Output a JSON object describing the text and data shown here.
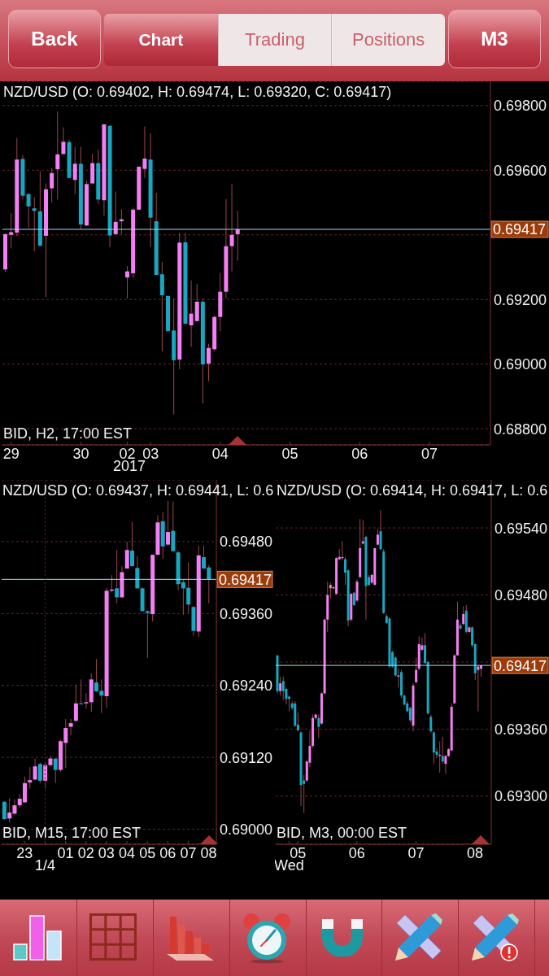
{
  "chart_data": [
    {
      "type": "other",
      "annotations": [
        "Back",
        "Chart",
        "Trading",
        "Positions",
        "M3"
      ]
    },
    {
      "type": "candlestick",
      "title": "NZD/USD (O: 0.69402, H: 0.69474, L: 0.69320, C: 0.69417)",
      "subtitle": "BID, H2, 17:00 EST",
      "categories": [
        null,
        "29",
        null,
        null,
        null,
        null,
        null,
        null,
        null,
        null,
        null,
        null,
        null,
        "30",
        null,
        null,
        null,
        null,
        null,
        null,
        null,
        "02\n2017",
        null,
        null,
        null,
        "03",
        null,
        null,
        null,
        null,
        null,
        null,
        null,
        null,
        null,
        null,
        null,
        "04",
        null,
        null,
        null,
        null,
        null,
        null,
        null,
        null,
        null,
        null,
        null,
        "05",
        null,
        null,
        null,
        null,
        null,
        null,
        null,
        null,
        null,
        null,
        null,
        "06",
        null,
        null,
        null,
        null,
        null,
        null,
        null,
        null,
        null,
        null,
        null,
        "07",
        null,
        null,
        null,
        null,
        null,
        null,
        null,
        null,
        null,
        null
      ],
      "ohlc": [
        [
          0.69293,
          0.69405,
          0.69285,
          0.69402
        ],
        [
          0.694,
          0.69467,
          0.69358,
          0.69408
        ],
        [
          0.69407,
          0.697,
          0.69396,
          0.69633
        ],
        [
          0.69635,
          0.69647,
          0.69511,
          0.69521
        ],
        [
          0.69526,
          0.6953,
          0.69421,
          0.69488
        ],
        [
          0.69482,
          0.69517,
          0.69349,
          0.69474
        ],
        [
          0.69473,
          0.69597,
          0.69366,
          0.69366
        ],
        [
          0.69397,
          0.69559,
          0.69207,
          0.69541
        ],
        [
          0.69544,
          0.69607,
          0.695,
          0.69591
        ],
        [
          0.69603,
          0.69782,
          0.69509,
          0.69649
        ],
        [
          0.6965,
          0.69733,
          0.6965,
          0.69688
        ],
        [
          0.69687,
          0.69695,
          0.69576,
          0.69576
        ],
        [
          0.6957,
          0.69672,
          0.69526,
          0.6962
        ],
        [
          0.6962,
          0.69672,
          0.69417,
          0.69432
        ],
        [
          0.69429,
          0.69568,
          0.69427,
          0.69557
        ],
        [
          0.69559,
          0.69651,
          0.69559,
          0.69622
        ],
        [
          0.69622,
          0.69664,
          0.69496,
          0.69509
        ],
        [
          0.69507,
          0.69742,
          0.69459,
          0.69742
        ],
        [
          0.69737,
          0.6974,
          0.69362,
          0.69398
        ],
        [
          0.69402,
          0.69534,
          0.69402,
          0.6944
        ],
        [
          0.69442,
          0.69479,
          0.69402,
          0.69448
        ],
        [
          0.69268,
          0.69303,
          0.69203,
          0.69287
        ],
        [
          0.69281,
          0.69484,
          0.69266,
          0.69478
        ],
        [
          0.69478,
          0.69611,
          0.69478,
          0.69611
        ],
        [
          0.69604,
          0.69735,
          0.69576,
          0.69636
        ],
        [
          0.69633,
          0.69714,
          0.69362,
          0.69453
        ],
        [
          0.69442,
          0.6953,
          0.69276,
          0.69276
        ],
        [
          0.69278,
          0.69316,
          0.69039,
          0.69213
        ],
        [
          0.69211,
          0.69211,
          0.69102,
          0.69102
        ],
        [
          0.69104,
          0.69203,
          0.68844,
          0.69012
        ],
        [
          0.69014,
          0.69406,
          0.68984,
          0.69376
        ],
        [
          0.69377,
          0.69406,
          0.69125,
          0.69125
        ],
        [
          0.6912,
          0.69259,
          0.69053,
          0.69156
        ],
        [
          0.69133,
          0.69249,
          0.69133,
          0.69193
        ],
        [
          0.69193,
          0.69203,
          0.68878,
          0.68999
        ],
        [
          0.69001,
          0.69063,
          0.68947,
          0.6905
        ],
        [
          0.69046,
          0.69151,
          0.6904,
          0.69146
        ],
        [
          0.69146,
          0.69282,
          0.69102,
          0.69224
        ],
        [
          0.69224,
          0.69511,
          0.69203,
          0.69365
        ],
        [
          0.69365,
          0.69557,
          0.69287,
          0.694
        ],
        [
          0.69402,
          0.69474,
          0.6932,
          0.69417
        ],
        null,
        null,
        null,
        null,
        null,
        null,
        null,
        null,
        null,
        null,
        null,
        null,
        null,
        null,
        null,
        null,
        null,
        null,
        null,
        null,
        null,
        null,
        null,
        null,
        null,
        null,
        null,
        null,
        null,
        null,
        null,
        null,
        null,
        null,
        null,
        null,
        null,
        null,
        null,
        null,
        null,
        null,
        null
      ],
      "colors": [
        "#f47ef4",
        "#f47ef4",
        "#f47ef4",
        "#17a7c0",
        "#17a7c0",
        "#17a7c0",
        "#17a7c0",
        "#f47ef4",
        "#f47ef4",
        "#f47ef4",
        "#f47ef4",
        "#17a7c0",
        "#f47ef4",
        "#17a7c0",
        "#f47ef4",
        "#f47ef4",
        "#17a7c0",
        "#f47ef4",
        "#17a7c0",
        "#f47ef4",
        "#f47ef4",
        "#f47ef4",
        "#f47ef4",
        "#f47ef4",
        "#f47ef4",
        "#17a7c0",
        "#17a7c0",
        "#17a7c0",
        "#17a7c0",
        "#17a7c0",
        "#f47ef4",
        "#17a7c0",
        "#f47ef4",
        "#f47ef4",
        "#17a7c0",
        "#f47ef4",
        "#f47ef4",
        "#f47ef4",
        "#f47ef4",
        "#f47ef4",
        "#f47ef4",
        null,
        null,
        null,
        null,
        null,
        null,
        null,
        null,
        null,
        null,
        null,
        null,
        null,
        null,
        null,
        null,
        null,
        null,
        null,
        null,
        null,
        null,
        null,
        null,
        null,
        null,
        null,
        null,
        null,
        null,
        null,
        null,
        null,
        null,
        null,
        null,
        null,
        null,
        null,
        null,
        null,
        null,
        null
      ],
      "ylim": [
        0.6875,
        0.69875
      ],
      "yticks": [
        {
          "value": 0.688,
          "label": "0.68800"
        },
        {
          "value": 0.69,
          "label": "0.69000"
        },
        {
          "value": 0.692,
          "label": "0.69200"
        },
        {
          "value": 0.694,
          "label": null
        },
        {
          "value": 0.696,
          "label": "0.69600"
        },
        {
          "value": 0.698,
          "label": "0.69800"
        }
      ],
      "grid": "y",
      "ref_lines": [
        {
          "axis": "y",
          "value": 0.69417,
          "label": "0.69417",
          "color": "#a9d9f2",
          "line_style": "solid"
        }
      ]
    },
    {
      "type": "candlestick",
      "title": "NZD/USD (O: 0.69437, H: 0.69441, L: 0.6",
      "subtitle": "BID, M15, 17:00 EST",
      "categories": [
        null,
        null,
        null,
        null,
        "23",
        null,
        null,
        null,
        "\n1/4",
        null,
        null,
        null,
        "01",
        null,
        null,
        null,
        "02",
        null,
        null,
        null,
        "03",
        null,
        null,
        null,
        "04",
        null,
        null,
        null,
        "05",
        null,
        null,
        null,
        "06",
        null,
        null,
        null,
        "07",
        null,
        null,
        null,
        "08",
        null
      ],
      "ohlc": [
        [
          0.69046,
          0.69046,
          0.69016,
          0.69017
        ],
        [
          0.69018,
          0.69052,
          0.69011,
          0.69028
        ],
        [
          0.69026,
          0.6905,
          0.69023,
          0.6904
        ],
        [
          0.6904,
          0.69059,
          0.69036,
          0.69051
        ],
        [
          0.69045,
          0.69088,
          0.69044,
          0.69077
        ],
        [
          0.69078,
          0.69104,
          0.69068,
          0.69082
        ],
        [
          0.69083,
          0.69118,
          0.69082,
          0.69105
        ],
        [
          0.69109,
          0.69111,
          0.69077,
          0.69081
        ],
        [
          0.69081,
          0.69111,
          0.69068,
          0.69107
        ],
        [
          0.69107,
          0.69122,
          0.69104,
          0.69118
        ],
        [
          0.69118,
          0.69118,
          0.69077,
          0.69099
        ],
        [
          0.69099,
          0.69149,
          0.69096,
          0.69147
        ],
        [
          0.69144,
          0.69184,
          0.69102,
          0.69169
        ],
        [
          0.69171,
          0.69184,
          0.69157,
          0.69177
        ],
        [
          0.69181,
          0.69241,
          0.69179,
          0.6921
        ],
        [
          0.6921,
          0.6925,
          0.69209,
          0.69209
        ],
        [
          0.6921,
          0.69227,
          0.69201,
          0.69212
        ],
        [
          0.69212,
          0.6926,
          0.69196,
          0.6925
        ],
        [
          0.69245,
          0.69284,
          0.6923,
          0.6923
        ],
        [
          0.69231,
          0.6925,
          0.69194,
          0.69223
        ],
        [
          0.69222,
          0.69403,
          0.69203,
          0.69398
        ],
        [
          0.69398,
          0.69424,
          0.69395,
          0.694
        ],
        [
          0.69402,
          0.69466,
          0.69377,
          0.69387
        ],
        [
          0.69387,
          0.69439,
          0.69386,
          0.69429
        ],
        [
          0.69435,
          0.6948,
          0.69435,
          0.69466
        ],
        [
          0.69465,
          0.69513,
          0.69439,
          0.69439
        ],
        [
          0.69436,
          0.69456,
          0.69402,
          0.69402
        ],
        [
          0.69402,
          0.69404,
          0.69364,
          0.69364
        ],
        [
          0.69364,
          0.69365,
          0.69286,
          0.69361
        ],
        [
          0.69359,
          0.69458,
          0.69347,
          0.69458
        ],
        [
          0.69458,
          0.69524,
          0.69458,
          0.69512
        ],
        [
          0.69514,
          0.69529,
          0.69451,
          0.69472
        ],
        [
          0.69475,
          0.69548,
          0.69473,
          0.69496
        ],
        [
          0.69498,
          0.69547,
          0.69463,
          0.69464
        ],
        [
          0.69462,
          0.69465,
          0.69399,
          0.69409
        ],
        [
          0.69412,
          0.69416,
          0.69358,
          0.69402
        ],
        [
          0.69403,
          0.69445,
          0.69361,
          0.69375
        ],
        [
          0.69371,
          0.69372,
          0.69323,
          0.69331
        ],
        [
          0.6933,
          0.69473,
          0.69321,
          0.69457
        ],
        [
          0.69454,
          0.69473,
          0.69435,
          0.69435
        ],
        [
          0.69437,
          0.69441,
          0.69377,
          0.69417
        ],
        null
      ],
      "colors": [
        "#17a7c0",
        "#f47ef4",
        "#f47ef4",
        "#f47ef4",
        "#f47ef4",
        "#f47ef4",
        "#f47ef4",
        "#17a7c0",
        "#f47ef4",
        "#f47ef4",
        "#17a7c0",
        "#f47ef4",
        "#f47ef4",
        "#f47ef4",
        "#f47ef4",
        "#17a7c0",
        "#f47ef4",
        "#f47ef4",
        "#17a7c0",
        "#17a7c0",
        "#f47ef4",
        "#f47ef4",
        "#17a7c0",
        "#f47ef4",
        "#f47ef4",
        "#17a7c0",
        "#17a7c0",
        "#17a7c0",
        "#17a7c0",
        "#f47ef4",
        "#f47ef4",
        "#17a7c0",
        "#f47ef4",
        "#17a7c0",
        "#17a7c0",
        "#17a7c0",
        "#17a7c0",
        "#17a7c0",
        "#f47ef4",
        "#17a7c0",
        "#17a7c0",
        null
      ],
      "ylim": [
        0.68975,
        0.69583
      ],
      "yticks": [
        {
          "value": 0.69,
          "label": "0.69000"
        },
        {
          "value": 0.6912,
          "label": "0.69120"
        },
        {
          "value": 0.6924,
          "label": "0.69240"
        },
        {
          "value": 0.6936,
          "label": "0.69360"
        },
        {
          "value": 0.6948,
          "label": "0.69480"
        }
      ],
      "grid": "y",
      "ref_lines": [
        {
          "axis": "y",
          "value": 0.69417,
          "label": "0.69417",
          "color": "#a9d9f2",
          "line_style": "solid"
        },
        {
          "axis": "x",
          "value": "\n1/4",
          "color": "#6e2626",
          "line_style": "dotted"
        }
      ]
    },
    {
      "type": "candlestick",
      "title": "NZD/USD (O: 0.69414, H: 0.69417, L: 0.6",
      "subtitle": "BID, M3, 00:00 EST",
      "categories": [
        null,
        null,
        null,
        null,
        "\nWed",
        null,
        null,
        "05",
        null,
        null,
        null,
        null,
        null,
        null,
        null,
        null,
        null,
        null,
        null,
        null,
        null,
        null,
        null,
        null,
        null,
        null,
        null,
        "06",
        null,
        null,
        null,
        null,
        null,
        null,
        null,
        null,
        null,
        null,
        null,
        null,
        null,
        null,
        null,
        null,
        null,
        null,
        null,
        "07",
        null,
        null,
        null,
        null,
        null,
        null,
        null,
        null,
        null,
        null,
        null,
        null,
        null,
        null,
        null,
        null,
        null,
        null,
        null,
        "08",
        null,
        null,
        null,
        null,
        null
      ],
      "ohlc": [
        [
          0.69426,
          0.69426,
          0.69392,
          0.69394
        ],
        [
          0.69394,
          0.69407,
          0.6939,
          0.69401
        ],
        [
          0.69403,
          0.69407,
          0.69386,
          0.69394
        ],
        [
          0.69396,
          0.69397,
          0.69382,
          0.69387
        ],
        [
          0.69389,
          0.6939,
          0.69376,
          0.69387
        ],
        [
          0.69383,
          0.69385,
          0.69377,
          0.69379
        ],
        [
          0.69383,
          0.69385,
          0.69362,
          0.69363
        ],
        [
          0.69364,
          0.69375,
          0.69358,
          0.69359
        ],
        [
          0.69357,
          0.69358,
          0.69291,
          0.6931
        ],
        [
          0.69314,
          0.69319,
          0.69285,
          0.69311
        ],
        [
          0.69314,
          0.69332,
          0.69313,
          0.69331
        ],
        [
          0.6933,
          0.69359,
          0.69326,
          0.69345
        ],
        [
          0.69345,
          0.69373,
          0.69343,
          0.6937
        ],
        [
          0.6937,
          0.69374,
          0.69368,
          0.69373
        ],
        [
          0.6937,
          0.69373,
          0.69352,
          0.69362
        ],
        [
          0.69365,
          0.69393,
          0.69364,
          0.69392
        ],
        [
          0.69392,
          0.69459,
          0.69391,
          0.69458
        ],
        [
          0.69458,
          0.69492,
          0.69447,
          0.6948
        ],
        [
          0.69486,
          0.69491,
          0.69477,
          0.69489
        ],
        [
          0.69486,
          0.69488,
          0.69485,
          0.69487
        ],
        [
          0.69481,
          0.69514,
          0.6948,
          0.69513
        ],
        [
          0.69512,
          0.69521,
          0.69511,
          0.69514
        ],
        [
          0.69513,
          0.69528,
          0.69511,
          0.69514
        ],
        [
          0.69512,
          0.69514,
          0.69489,
          0.695
        ],
        [
          0.69502,
          0.69503,
          0.69452,
          0.69457
        ],
        [
          0.69458,
          0.69482,
          0.69456,
          0.69481
        ],
        [
          0.69482,
          0.69483,
          0.6947,
          0.69471
        ],
        [
          0.69475,
          0.69494,
          0.69474,
          0.69492
        ],
        [
          0.69496,
          0.69548,
          0.69495,
          0.69522
        ],
        [
          0.69526,
          0.69547,
          0.69525,
          0.69528
        ],
        [
          0.69532,
          0.69533,
          0.69458,
          0.69488
        ],
        [
          0.69496,
          0.69498,
          0.69488,
          0.69489
        ],
        [
          0.69491,
          0.69499,
          0.6949,
          0.69498
        ],
        [
          0.69489,
          0.69522,
          0.69489,
          0.69522
        ],
        [
          0.69525,
          0.69539,
          0.69525,
          0.69534
        ],
        [
          0.69537,
          0.69556,
          0.6952,
          0.69521
        ],
        [
          0.69519,
          0.69521,
          0.69463,
          0.69464
        ],
        [
          0.69461,
          0.69463,
          0.69454,
          0.69455
        ],
        [
          0.69459,
          0.6946,
          0.69415,
          0.69416
        ],
        [
          0.69429,
          0.6943,
          0.69415,
          0.69416
        ],
        [
          0.69424,
          0.69425,
          0.69407,
          0.69408
        ],
        [
          0.69407,
          0.69414,
          0.69397,
          0.69408
        ],
        [
          0.69411,
          0.69413,
          0.69388,
          0.6939
        ],
        [
          0.6939,
          0.69391,
          0.69381,
          0.69382
        ],
        [
          0.69383,
          0.69385,
          0.69375,
          0.69376
        ],
        [
          0.69379,
          0.6938,
          0.69366,
          0.69368
        ],
        [
          0.69363,
          0.69401,
          0.69358,
          0.69399
        ],
        [
          0.69402,
          0.69424,
          0.69401,
          0.69413
        ],
        [
          0.69414,
          0.69443,
          0.69413,
          0.69436
        ],
        [
          0.69431,
          0.69442,
          0.6943,
          0.69435
        ],
        [
          0.69435,
          0.69446,
          0.69419,
          0.69419
        ],
        [
          0.6942,
          0.69421,
          0.69373,
          0.69374
        ],
        [
          0.69371,
          0.69373,
          0.69357,
          0.69358
        ],
        [
          0.69357,
          0.69358,
          0.69329,
          0.69339
        ],
        [
          0.6934,
          0.69343,
          0.69334,
          0.69337
        ],
        [
          0.69336,
          0.69349,
          0.69321,
          0.69337
        ],
        [
          0.69336,
          0.69353,
          0.69329,
          0.69331
        ],
        [
          0.69329,
          0.69337,
          0.6932,
          0.69336
        ],
        [
          0.69336,
          0.69343,
          0.69335,
          0.69342
        ],
        [
          0.69341,
          0.69383,
          0.6934,
          0.6938
        ],
        [
          0.69383,
          0.69427,
          0.69383,
          0.69426
        ],
        [
          0.69426,
          0.69474,
          0.69426,
          0.69458
        ],
        [
          0.69453,
          0.69455,
          0.69449,
          0.6945
        ],
        [
          0.69454,
          0.6947,
          0.69453,
          0.69463
        ],
        [
          0.69466,
          0.69471,
          0.69446,
          0.69447
        ],
        [
          0.69447,
          0.69452,
          0.69446,
          0.69451
        ],
        [
          0.69451,
          0.69452,
          0.69433,
          0.69435
        ],
        [
          0.69436,
          0.69437,
          0.69404,
          0.6941
        ],
        [
          0.69413,
          0.69417,
          0.69376,
          0.69416
        ],
        [
          0.69414,
          0.69417,
          0.69407,
          0.69417
        ],
        null,
        null,
        null
      ],
      "colors": [
        "#17a7c0",
        "#f47ef4",
        "#17a7c0",
        "#17a7c0",
        "#17a7c0",
        "#17a7c0",
        "#17a7c0",
        "#17a7c0",
        "#17a7c0",
        "#17a7c0",
        "#f47ef4",
        "#f47ef4",
        "#f47ef4",
        "#f47ef4",
        "#17a7c0",
        "#f47ef4",
        "#f47ef4",
        "#f47ef4",
        "#f47ef4",
        "#f47ef4",
        "#f47ef4",
        "#f47ef4",
        "#f47ef4",
        "#17a7c0",
        "#17a7c0",
        "#f47ef4",
        "#17a7c0",
        "#f47ef4",
        "#f47ef4",
        "#f47ef4",
        "#17a7c0",
        "#17a7c0",
        "#f47ef4",
        "#f47ef4",
        "#f47ef4",
        "#17a7c0",
        "#17a7c0",
        "#17a7c0",
        "#17a7c0",
        "#17a7c0",
        "#17a7c0",
        "#f47ef4",
        "#17a7c0",
        "#17a7c0",
        "#17a7c0",
        "#17a7c0",
        "#f47ef4",
        "#f47ef4",
        "#f47ef4",
        "#f47ef4",
        "#17a7c0",
        "#17a7c0",
        "#17a7c0",
        "#17a7c0",
        "#17a7c0",
        "#f47ef4",
        "#17a7c0",
        "#f47ef4",
        "#f47ef4",
        "#f47ef4",
        "#f47ef4",
        "#f47ef4",
        "#17a7c0",
        "#f47ef4",
        "#17a7c0",
        "#f47ef4",
        "#17a7c0",
        "#17a7c0",
        "#f47ef4",
        "#f47ef4",
        null,
        null,
        null
      ],
      "ylim": [
        0.69257,
        0.69583
      ],
      "yticks": [
        {
          "value": 0.693,
          "label": "0.69300"
        },
        {
          "value": 0.6936,
          "label": "0.69360"
        },
        {
          "value": 0.6942,
          "label": null
        },
        {
          "value": 0.6948,
          "label": "0.69480"
        },
        {
          "value": 0.6954,
          "label": "0.69540"
        }
      ],
      "grid": "y",
      "ref_lines": [
        {
          "axis": "y",
          "value": 0.69417,
          "label": "0.69417",
          "color": "#a9d9f2",
          "line_style": "solid"
        }
      ]
    }
  ]
}
